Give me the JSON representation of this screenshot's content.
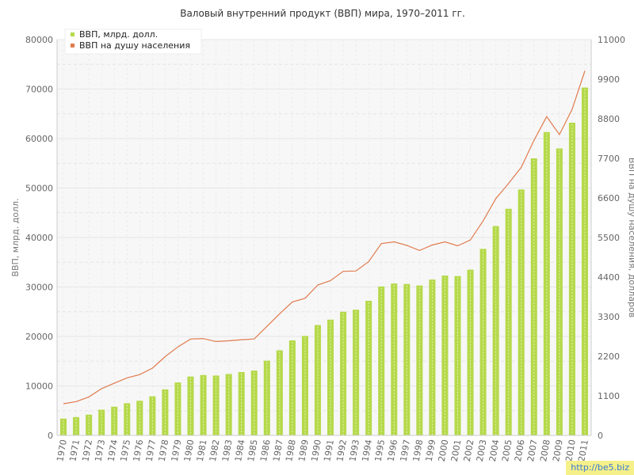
{
  "chart_data": {
    "type": "bar+line",
    "title": "Валовый внутренний продукт (ВВП) мира, 1970–2011 гг.",
    "ylabel_left": "ВВП, млрд. долл.",
    "ylabel_right": "ВВП на душу населения, долларов",
    "ylim_left": [
      0,
      80000
    ],
    "ylim_right": [
      0,
      11000
    ],
    "yticks_left": [
      "0",
      "10000",
      "20000",
      "30000",
      "40000",
      "50000",
      "60000",
      "70000",
      "80000"
    ],
    "yticks_right": [
      "0",
      "1100",
      "2200",
      "3300",
      "4400",
      "5500",
      "6600",
      "7700",
      "8800",
      "9900",
      "11000"
    ],
    "grid": true,
    "legend_position": "top-left",
    "categories": [
      "1970",
      "1971",
      "1972",
      "1973",
      "1974",
      "1975",
      "1976",
      "1977",
      "1978",
      "1979",
      "1980",
      "1981",
      "1982",
      "1983",
      "1984",
      "1985",
      "1986",
      "1987",
      "1988",
      "1989",
      "1990",
      "1991",
      "1992",
      "1993",
      "1994",
      "1995",
      "1996",
      "1997",
      "1998",
      "1999",
      "2000",
      "2001",
      "2002",
      "2003",
      "2004",
      "2005",
      "2006",
      "2007",
      "2008",
      "2009",
      "2010",
      "2011"
    ],
    "series": [
      {
        "name": "ВВП, млрд. долл.",
        "kind": "bar",
        "axis": "left",
        "color": "#b5d94a",
        "values": [
          3400,
          3700,
          4200,
          5200,
          5800,
          6500,
          7000,
          7900,
          9300,
          10700,
          11900,
          12200,
          12100,
          12400,
          12800,
          13100,
          15100,
          17200,
          19200,
          20100,
          22300,
          23400,
          25000,
          25400,
          27200,
          30100,
          30700,
          30600,
          30300,
          31500,
          32300,
          32200,
          33500,
          37700,
          42300,
          45800,
          49700,
          56000,
          61300,
          58000,
          63200,
          70300
        ]
      },
      {
        "name": "ВВП на душу населения",
        "kind": "line",
        "axis": "right",
        "color": "#e07b4e",
        "values": [
          880,
          940,
          1070,
          1300,
          1450,
          1600,
          1690,
          1870,
          2190,
          2460,
          2680,
          2690,
          2610,
          2630,
          2660,
          2680,
          3030,
          3380,
          3710,
          3810,
          4180,
          4300,
          4560,
          4570,
          4830,
          5330,
          5380,
          5280,
          5140,
          5290,
          5380,
          5270,
          5430,
          5960,
          6580,
          7000,
          7450,
          8200,
          8860,
          8360,
          9060,
          10130
        ]
      }
    ]
  },
  "watermark": "http://be5.biz"
}
